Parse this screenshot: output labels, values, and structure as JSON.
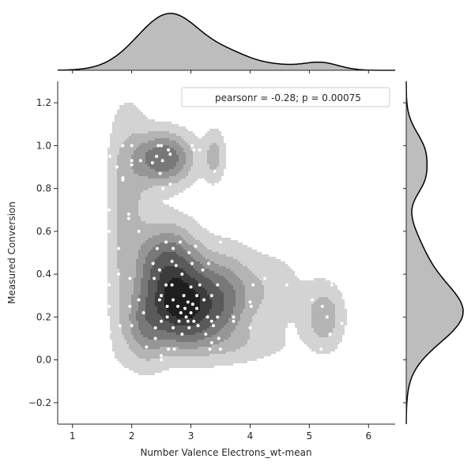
{
  "chart_data": {
    "type": "scatter",
    "variant": "joint plot: bivariate KDE contours with scatter points and marginal KDE curves",
    "xlabel": "Number Valence Electrons_wt-mean",
    "ylabel": "Measured Conversion",
    "xlim": [
      0.75,
      6.45
    ],
    "ylim": [
      -0.3,
      1.3
    ],
    "xticks": [
      1,
      2,
      3,
      4,
      5,
      6
    ],
    "xtick_labels": [
      "1",
      "2",
      "3",
      "4",
      "5",
      "6"
    ],
    "yticks": [
      -0.2,
      0.0,
      0.2,
      0.4,
      0.6,
      0.8,
      1.0,
      1.2
    ],
    "ytick_labels": [
      "−0.2",
      "0.0",
      "0.2",
      "0.4",
      "0.6",
      "0.8",
      "1.0",
      "1.2"
    ],
    "annotation": "pearsonr = -0.28; p = 0.00075",
    "legend_position": "upper right",
    "grid": false,
    "colors": {
      "contour_levels": [
        "#d3d3d3",
        "#b4b4b4",
        "#969696",
        "#787878",
        "#5a5a5a",
        "#3c3c3c",
        "#1e1e1e"
      ],
      "points": "#ffffff",
      "marginal_fill": "#bdbdbd",
      "marginal_line": "#000000"
    },
    "kde_components": [
      {
        "x": 2.55,
        "y": 0.94,
        "sx": 0.32,
        "sy": 0.08,
        "w": 0.55
      },
      {
        "x": 3.4,
        "y": 0.95,
        "sx": 0.12,
        "sy": 0.08,
        "w": 0.22
      },
      {
        "x": 2.0,
        "y": 0.82,
        "sx": 0.22,
        "sy": 0.25,
        "w": 0.18
      },
      {
        "x": 1.75,
        "y": 0.55,
        "sx": 0.12,
        "sy": 0.35,
        "w": 0.1
      },
      {
        "x": 2.9,
        "y": 0.25,
        "sx": 0.42,
        "sy": 0.12,
        "w": 1.0
      },
      {
        "x": 2.6,
        "y": 0.45,
        "sx": 0.35,
        "sy": 0.12,
        "w": 0.55
      },
      {
        "x": 2.2,
        "y": 0.15,
        "sx": 0.25,
        "sy": 0.12,
        "w": 0.3
      },
      {
        "x": 3.6,
        "y": 0.3,
        "sx": 0.3,
        "sy": 0.14,
        "w": 0.28
      },
      {
        "x": 4.3,
        "y": 0.32,
        "sx": 0.4,
        "sy": 0.12,
        "w": 0.14
      },
      {
        "x": 5.25,
        "y": 0.2,
        "sx": 0.22,
        "sy": 0.1,
        "w": 0.26
      },
      {
        "x": 3.9,
        "y": 0.07,
        "sx": 0.55,
        "sy": 0.06,
        "w": 0.1
      }
    ],
    "marginal_x_peaks": [
      {
        "x": 2.65,
        "s": 0.55,
        "w": 1.0
      },
      {
        "x": 3.7,
        "s": 0.35,
        "w": 0.18
      },
      {
        "x": 4.4,
        "s": 0.4,
        "w": 0.09
      },
      {
        "x": 5.2,
        "s": 0.3,
        "w": 0.13
      }
    ],
    "marginal_y_peaks": [
      {
        "y": 0.22,
        "s": 0.14,
        "w": 1.0
      },
      {
        "y": 0.5,
        "s": 0.12,
        "w": 0.22
      },
      {
        "y": 0.83,
        "s": 0.07,
        "w": 0.22
      },
      {
        "y": 0.97,
        "s": 0.09,
        "w": 0.32
      }
    ],
    "points": [
      [
        1.63,
        0.95
      ],
      [
        1.62,
        0.7
      ],
      [
        1.62,
        0.6
      ],
      [
        1.62,
        0.35
      ],
      [
        1.62,
        0.25
      ],
      [
        1.63,
        0.13
      ],
      [
        1.63,
        0.05
      ],
      [
        1.75,
        0.9
      ],
      [
        1.78,
        0.52
      ],
      [
        1.78,
        0.4
      ],
      [
        1.8,
        0.16
      ],
      [
        1.85,
        1.0
      ],
      [
        1.85,
        0.85
      ],
      [
        1.85,
        0.84
      ],
      [
        1.95,
        0.68
      ],
      [
        1.95,
        0.66
      ],
      [
        1.97,
        0.38
      ],
      [
        1.97,
        0.25
      ],
      [
        2.0,
        0.16
      ],
      [
        2.0,
        1.0
      ],
      [
        2.0,
        0.93
      ],
      [
        2.0,
        0.91
      ],
      [
        2.12,
        0.6
      ],
      [
        2.12,
        0.28
      ],
      [
        2.15,
        0.93
      ],
      [
        2.2,
        0.22
      ],
      [
        2.25,
        0.06
      ],
      [
        2.35,
        0.92
      ],
      [
        2.36,
        0.45
      ],
      [
        2.38,
        0.38
      ],
      [
        2.4,
        0.15
      ],
      [
        2.4,
        0.1
      ],
      [
        2.42,
        0.95
      ],
      [
        2.43,
        0.52
      ],
      [
        2.45,
        1.0
      ],
      [
        2.47,
        0.42
      ],
      [
        2.47,
        0.28
      ],
      [
        2.48,
        0.87
      ],
      [
        2.5,
        1.0
      ],
      [
        2.5,
        0.3
      ],
      [
        2.5,
        0.18
      ],
      [
        2.5,
        0.02
      ],
      [
        2.5,
        0.0
      ],
      [
        2.52,
        0.93
      ],
      [
        2.53,
        0.8
      ],
      [
        2.55,
        0.74
      ],
      [
        2.58,
        0.55
      ],
      [
        2.58,
        0.35
      ],
      [
        2.6,
        0.25
      ],
      [
        2.6,
        0.2
      ],
      [
        2.62,
        0.05
      ],
      [
        2.62,
        0.98
      ],
      [
        2.65,
        0.96
      ],
      [
        2.65,
        0.82
      ],
      [
        2.68,
        0.46
      ],
      [
        2.68,
        0.35
      ],
      [
        2.7,
        0.52
      ],
      [
        2.7,
        0.28
      ],
      [
        2.7,
        0.15
      ],
      [
        2.72,
        0.05
      ],
      [
        2.75,
        0.44
      ],
      [
        2.78,
        0.25
      ],
      [
        2.8,
        0.18
      ],
      [
        2.82,
        0.55
      ],
      [
        2.83,
        0.22
      ],
      [
        2.85,
        0.4
      ],
      [
        2.85,
        0.12
      ],
      [
        2.88,
        0.3
      ],
      [
        2.9,
        0.24
      ],
      [
        2.92,
        0.2
      ],
      [
        2.95,
        0.27
      ],
      [
        2.95,
        0.18
      ],
      [
        2.97,
        0.5
      ],
      [
        2.97,
        0.15
      ],
      [
        3.0,
        0.34
      ],
      [
        3.0,
        0.22
      ],
      [
        3.02,
        0.45
      ],
      [
        3.02,
        1.0
      ],
      [
        3.03,
        0.26
      ],
      [
        3.05,
        0.18
      ],
      [
        3.05,
        0.98
      ],
      [
        3.07,
        0.8
      ],
      [
        3.08,
        0.53
      ],
      [
        3.1,
        0.3
      ],
      [
        3.1,
        0.24
      ],
      [
        3.12,
        0.16
      ],
      [
        3.15,
        0.98
      ],
      [
        3.15,
        0.35
      ],
      [
        3.2,
        0.42
      ],
      [
        3.2,
        0.82
      ],
      [
        3.22,
        0.28
      ],
      [
        3.25,
        0.12
      ],
      [
        3.28,
        0.2
      ],
      [
        3.3,
        0.45
      ],
      [
        3.32,
        0.05
      ],
      [
        3.35,
        0.08
      ],
      [
        3.35,
        0.3
      ],
      [
        3.35,
        0.18
      ],
      [
        3.38,
        0.16
      ],
      [
        3.4,
        0.88
      ],
      [
        3.42,
        0.82
      ],
      [
        3.45,
        0.35
      ],
      [
        3.45,
        0.2
      ],
      [
        3.47,
        0.1
      ],
      [
        3.5,
        0.05
      ],
      [
        3.5,
        0.55
      ],
      [
        3.72,
        0.2
      ],
      [
        3.72,
        0.18
      ],
      [
        4.0,
        0.15
      ],
      [
        4.0,
        0.27
      ],
      [
        4.02,
        0.25
      ],
      [
        4.05,
        0.35
      ],
      [
        4.25,
        0.38
      ],
      [
        4.62,
        0.35
      ],
      [
        5.0,
        0.38
      ],
      [
        5.05,
        0.28
      ],
      [
        5.2,
        0.05
      ],
      [
        5.22,
        0.25
      ],
      [
        5.3,
        0.2
      ],
      [
        5.35,
        0.12
      ],
      [
        5.38,
        0.35
      ],
      [
        5.55,
        0.17
      ]
    ]
  }
}
